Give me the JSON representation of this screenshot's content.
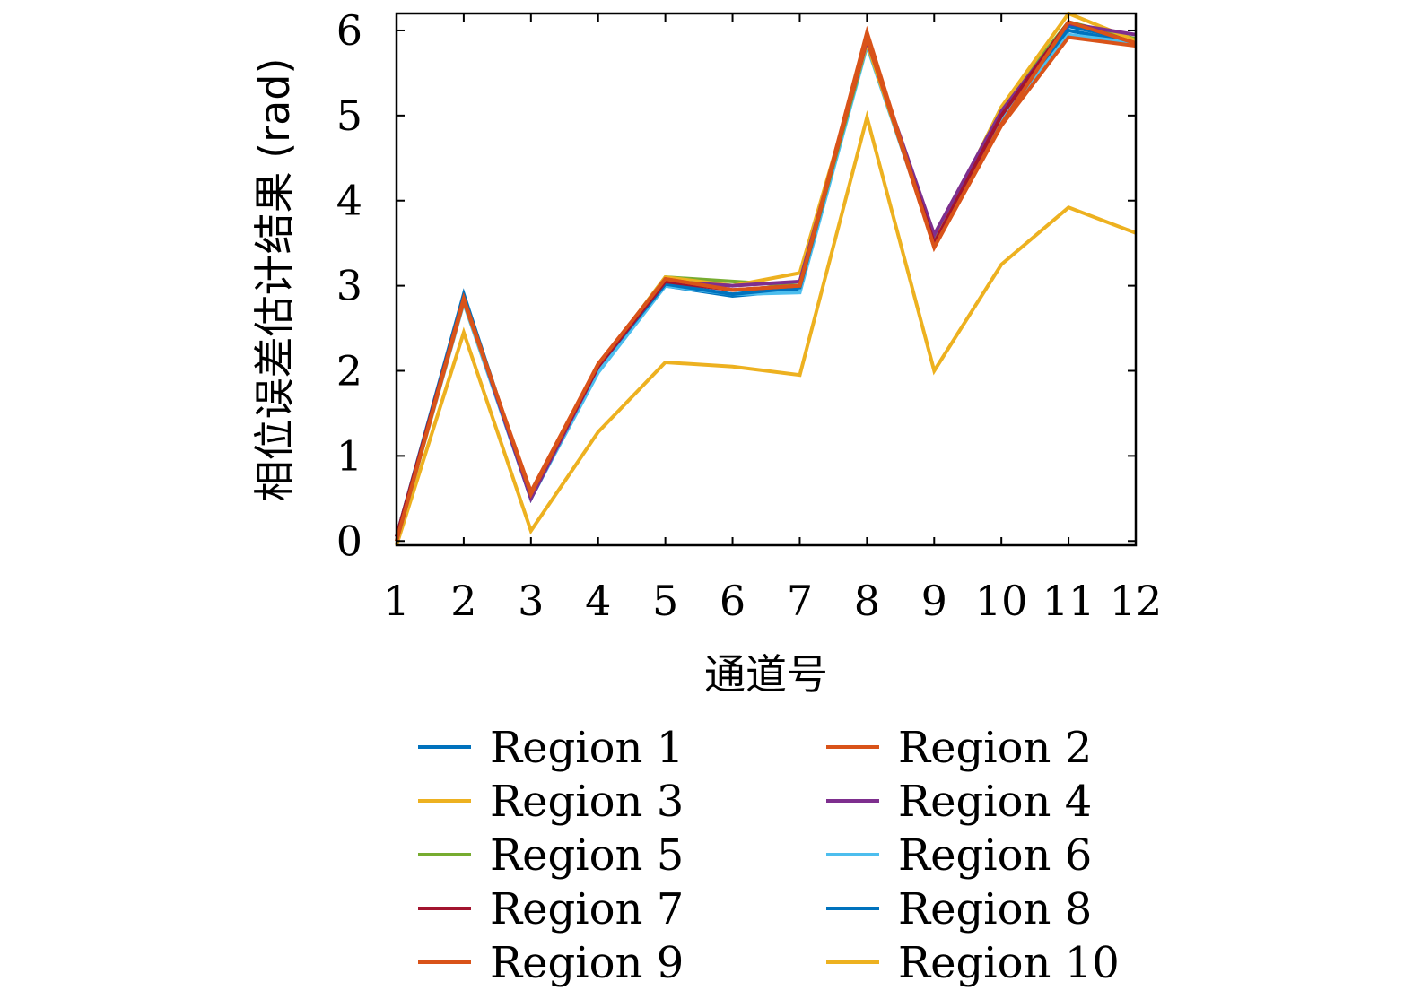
{
  "chart_data": {
    "type": "line",
    "title": "",
    "xlabel": "通道号",
    "ylabel": "相位误差估计结果 (rad)",
    "x": [
      1,
      2,
      3,
      4,
      5,
      6,
      7,
      8,
      9,
      10,
      11,
      12
    ],
    "xticks": [
      "1",
      "2",
      "3",
      "4",
      "5",
      "6",
      "7",
      "8",
      "9",
      "10",
      "11",
      "12"
    ],
    "yticks": [
      "0",
      "1",
      "2",
      "3",
      "4",
      "5",
      "6"
    ],
    "xlim": [
      1,
      12
    ],
    "ylim": [
      -0.05,
      6.2
    ],
    "grid": false,
    "legend_position": "bottom",
    "series": [
      {
        "name": "Region 1",
        "color": "#0072BD",
        "values": [
          0.05,
          2.9,
          0.5,
          2.0,
          3.0,
          2.88,
          2.95,
          5.85,
          3.55,
          5.0,
          6.0,
          5.85
        ]
      },
      {
        "name": "Region 2",
        "color": "#D95319",
        "values": [
          0.0,
          2.85,
          0.55,
          2.08,
          3.08,
          2.95,
          3.0,
          5.9,
          3.45,
          4.9,
          6.1,
          5.85
        ]
      },
      {
        "name": "Region 3",
        "color": "#EDB120",
        "values": [
          0.0,
          2.82,
          0.55,
          2.05,
          3.1,
          3.0,
          3.15,
          5.85,
          3.5,
          5.1,
          6.2,
          5.88
        ]
      },
      {
        "name": "Region 4",
        "color": "#7E2F8E",
        "values": [
          0.05,
          2.85,
          0.5,
          2.05,
          3.05,
          3.0,
          3.05,
          5.88,
          3.6,
          5.05,
          6.08,
          5.95
        ]
      },
      {
        "name": "Region 5",
        "color": "#77AC30",
        "values": [
          0.05,
          2.85,
          0.55,
          2.05,
          3.1,
          3.05,
          3.0,
          5.85,
          3.5,
          5.1,
          6.1,
          5.9
        ]
      },
      {
        "name": "Region 6",
        "color": "#4DBEEE",
        "values": [
          0.0,
          2.8,
          0.5,
          1.98,
          3.0,
          2.9,
          2.92,
          5.82,
          3.5,
          4.95,
          5.95,
          5.85
        ]
      },
      {
        "name": "Region 7",
        "color": "#A2142F",
        "values": [
          0.05,
          2.85,
          0.55,
          2.05,
          3.05,
          2.95,
          3.0,
          5.9,
          3.5,
          5.0,
          6.1,
          5.85
        ]
      },
      {
        "name": "Region 8",
        "color": "#0072BD",
        "values": [
          0.05,
          2.85,
          0.5,
          2.05,
          3.02,
          2.9,
          2.98,
          5.88,
          3.55,
          5.02,
          6.05,
          5.88
        ]
      },
      {
        "name": "Region 9",
        "color": "#D95319",
        "values": [
          0.0,
          2.82,
          0.58,
          2.08,
          3.08,
          2.95,
          3.0,
          5.98,
          3.45,
          4.88,
          5.92,
          5.82
        ]
      },
      {
        "name": "Region 10",
        "color": "#EDB120",
        "values": [
          -0.05,
          2.45,
          0.12,
          1.28,
          2.1,
          2.05,
          1.95,
          4.98,
          2.0,
          3.25,
          3.92,
          3.62
        ]
      }
    ]
  }
}
